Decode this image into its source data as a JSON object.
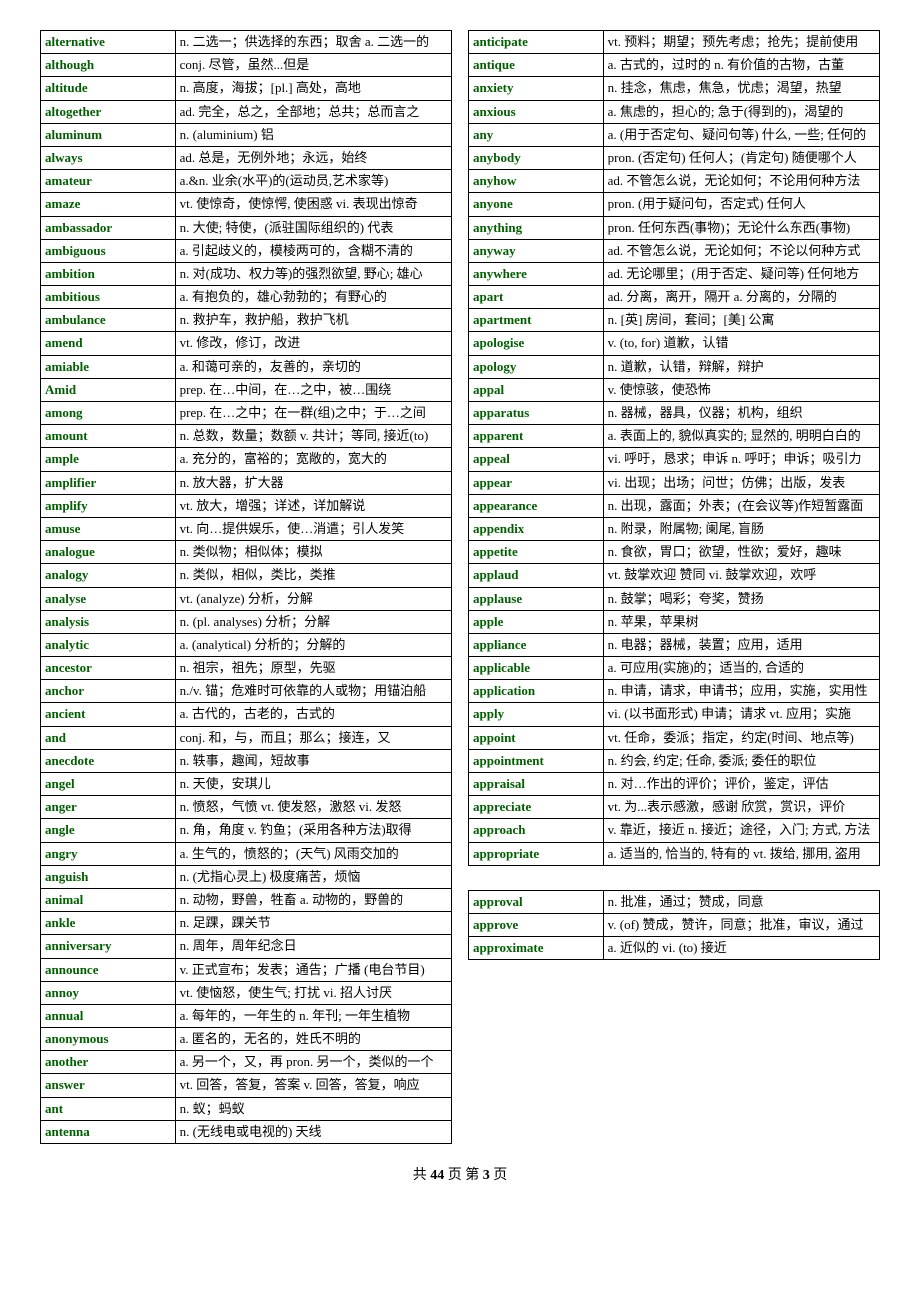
{
  "colors": {
    "word": "#006000",
    "def": "#000000",
    "border": "#000000",
    "background": "#ffffff"
  },
  "typography": {
    "word_font": "Times New Roman",
    "def_font": "SimSun",
    "font_size_pt": 10,
    "word_weight": "bold"
  },
  "layout": {
    "columns": 2,
    "word_col_width_pct": 32,
    "def_col_width_pct": 68
  },
  "left": [
    {
      "w": "alternative",
      "d": "n. 二选一；供选择的东西；取舍 a. 二选一的"
    },
    {
      "w": "although",
      "d": "conj. 尽管，虽然...但是"
    },
    {
      "w": "altitude",
      "d": "n. 高度，海拔；[pl.] 高处，高地"
    },
    {
      "w": "altogether",
      "d": "ad. 完全，总之，全部地；总共；总而言之"
    },
    {
      "w": "aluminum",
      "d": "n. (aluminium) 铝"
    },
    {
      "w": "always",
      "d": "ad. 总是，无例外地；永远，始终"
    },
    {
      "w": "amateur",
      "d": "a.&n. 业余(水平)的(运动员,艺术家等)"
    },
    {
      "w": "amaze",
      "d": "vt. 使惊奇，使惊愕, 使困惑  vi. 表现出惊奇"
    },
    {
      "w": "ambassador",
      "d": "n. 大使; 特使，(派驻国际组织的) 代表"
    },
    {
      "w": "ambiguous",
      "d": "a. 引起歧义的，模棱两可的，含糊不清的"
    },
    {
      "w": "ambition",
      "d": "n. 对(成功、权力等)的强烈欲望, 野心; 雄心"
    },
    {
      "w": "ambitious",
      "d": "a. 有抱负的，雄心勃勃的；有野心的"
    },
    {
      "w": "ambulance",
      "d": "n. 救护车，救护船，救护飞机"
    },
    {
      "w": "amend",
      "d": "vt. 修改，修订，改进"
    },
    {
      "w": "amiable",
      "d": "a. 和蔼可亲的，友善的，亲切的"
    },
    {
      "w": "Amid",
      "d": "prep. 在…中间，在…之中，被…围绕"
    },
    {
      "w": "among",
      "d": "prep. 在…之中；在一群(组)之中；于…之间"
    },
    {
      "w": "amount",
      "d": "n. 总数，数量；数额 v. 共计；等同, 接近(to)"
    },
    {
      "w": "ample",
      "d": "a. 充分的，富裕的；宽敞的，宽大的"
    },
    {
      "w": "amplifier",
      "d": "n. 放大器，扩大器"
    },
    {
      "w": "amplify",
      "d": "vt. 放大，增强；详述，详加解说"
    },
    {
      "w": "amuse",
      "d": "vt. 向…提供娱乐，使…消遣；引人发笑"
    },
    {
      "w": "analogue",
      "d": "n. 类似物；相似体；模拟"
    },
    {
      "w": "analogy",
      "d": "n. 类似，相似，类比，类推"
    },
    {
      "w": "analyse",
      "d": "vt. (analyze) 分析，分解"
    },
    {
      "w": "analysis",
      "d": "n. (pl. analyses) 分析；分解"
    },
    {
      "w": "analytic",
      "d": "a. (analytical) 分析的；分解的"
    },
    {
      "w": "ancestor",
      "d": "n. 祖宗，祖先；原型，先驱"
    },
    {
      "w": "anchor",
      "d": "n./v. 锚；危难时可依靠的人或物；用锚泊船"
    },
    {
      "w": "ancient",
      "d": "a. 古代的，古老的，古式的"
    },
    {
      "w": "and",
      "d": "conj. 和，与，而且；那么；接连，又"
    },
    {
      "w": "anecdote",
      "d": "n. 轶事，趣闻，短故事"
    },
    {
      "w": "angel",
      "d": "n. 天使，安琪儿"
    },
    {
      "w": "anger",
      "d": "n. 愤怒，气愤 vt. 使发怒，激怒 vi. 发怒"
    },
    {
      "w": "angle",
      "d": "n. 角，角度 v. 钓鱼；(采用各种方法)取得"
    },
    {
      "w": "angry",
      "d": "a. 生气的，愤怒的；(天气) 风雨交加的"
    },
    {
      "w": "anguish",
      "d": "n. (尤指心灵上) 极度痛苦，烦恼"
    },
    {
      "w": "animal",
      "d": "n. 动物，野兽，牲畜 a. 动物的，野兽的"
    },
    {
      "w": "ankle",
      "d": "n. 足踝，踝关节"
    },
    {
      "w": "anniversary",
      "d": "n. 周年，周年纪念日"
    },
    {
      "w": "announce",
      "d": "v. 正式宣布；发表；通告；广播 (电台节目)"
    },
    {
      "w": "annoy",
      "d": "vt. 使恼怒，使生气; 打扰 vi. 招人讨厌"
    },
    {
      "w": "annual",
      "d": "a. 每年的，一年生的 n. 年刊; 一年生植物"
    },
    {
      "w": "anonymous",
      "d": "a. 匿名的，无名的，姓氏不明的"
    },
    {
      "w": "another",
      "d": "a. 另一个，又，再 pron. 另一个，类似的一个"
    },
    {
      "w": "answer",
      "d": "vt. 回答，答复，答案 v. 回答，答复，响应"
    },
    {
      "w": "ant",
      "d": "n. 蚁；蚂蚁"
    },
    {
      "w": "antenna",
      "d": "n. (无线电或电视的) 天线"
    }
  ],
  "right": [
    {
      "w": "anticipate",
      "d": "vt. 预料；期望；预先考虑；抢先；提前使用"
    },
    {
      "w": "antique",
      "d": "a. 古式的，过时的  n. 有价值的古物，古董"
    },
    {
      "w": "anxiety",
      "d": "n. 挂念，焦虑，焦急，忧虑；渴望，热望"
    },
    {
      "w": "anxious",
      "d": "a. 焦虑的，担心的; 急于(得到的)，渴望的"
    },
    {
      "w": "any",
      "d": "a. (用于否定句、疑问句等) 什么, 一些; 任何的"
    },
    {
      "w": "anybody",
      "d": "pron. (否定句) 任何人；(肯定句) 随便哪个人"
    },
    {
      "w": "anyhow",
      "d": "ad. 不管怎么说，无论如何；不论用何种方法"
    },
    {
      "w": "anyone",
      "d": "pron. (用于疑问句，否定式) 任何人"
    },
    {
      "w": "anything",
      "d": "pron. 任何东西(事物)；无论什么东西(事物)"
    },
    {
      "w": "anyway",
      "d": "ad. 不管怎么说，无论如何；不论以何种方式"
    },
    {
      "w": "anywhere",
      "d": "ad. 无论哪里；(用于否定、疑问等) 任何地方"
    },
    {
      "w": "apart",
      "d": "ad. 分离，离开，隔开 a. 分离的，分隔的"
    },
    {
      "w": "apartment",
      "d": "n. [英] 房间，套间；[美] 公寓"
    },
    {
      "w": "apologise",
      "d": "v. (to, for) 道歉，认错"
    },
    {
      "w": "apology",
      "d": "n. 道歉，认错，辩解，辩护"
    },
    {
      "w": "appal",
      "d": "v. 使惊骇，使恐怖"
    },
    {
      "w": "apparatus",
      "d": "n. 器械，器具，仪器；机构，组织"
    },
    {
      "w": "apparent",
      "d": "a. 表面上的, 貌似真实的; 显然的, 明明白白的"
    },
    {
      "w": "appeal",
      "d": "vi. 呼吁，恳求；申诉 n. 呼吁；申诉；吸引力"
    },
    {
      "w": "appear",
      "d": "vi. 出现；出场；问世；仿佛；出版，发表"
    },
    {
      "w": "appearance",
      "d": "n. 出现，露面；外表；(在会议等)作短暂露面"
    },
    {
      "w": "appendix",
      "d": "n. 附录，附属物; 阑尾, 盲肠"
    },
    {
      "w": "appetite",
      "d": "n. 食欲，胃口；欲望，性欲；爱好，趣味"
    },
    {
      "w": "applaud",
      "d": "vt. 鼓掌欢迎 赞同 vi. 鼓掌欢迎，欢呼"
    },
    {
      "w": "applause",
      "d": "n. 鼓掌；喝彩；夸奖，赞扬"
    },
    {
      "w": "apple",
      "d": "n. 苹果，苹果树"
    },
    {
      "w": "appliance",
      "d": "n. 电器；器械，装置；应用，适用"
    },
    {
      "w": "applicable",
      "d": "a. 可应用(实施)的；适当的, 合适的"
    },
    {
      "w": "application",
      "d": "n. 申请，请求，申请书；应用，实施，实用性"
    },
    {
      "w": "apply",
      "d": "vi. (以书面形式) 申请；请求 vt. 应用；实施"
    },
    {
      "w": "appoint",
      "d": "vt. 任命，委派；指定，约定(时间、地点等)"
    },
    {
      "w": "appointment",
      "d": "n. 约会, 约定; 任命, 委派; 委任的职位"
    },
    {
      "w": "appraisal",
      "d": "n. 对…作出的评价；评价，鉴定，评估"
    },
    {
      "w": "appreciate",
      "d": "vt. 为...表示感激，感谢 欣赏，赏识，评价"
    },
    {
      "w": "approach",
      "d": "v. 靠近，接近 n. 接近；途径，入门; 方式, 方法"
    },
    {
      "w": "appropriate",
      "d": "a. 适当的, 恰当的, 特有的 vt. 拨给, 挪用, 盗用"
    }
  ],
  "extra": [
    {
      "w": "approval",
      "d": "n. 批准，通过；赞成，同意"
    },
    {
      "w": "approve",
      "d": "v. (of) 赞成，赞许，同意；批准，审议，通过"
    },
    {
      "w": "approximate",
      "d": "a. 近似的 vi. (to) 接近"
    }
  ],
  "footer": {
    "total_pages": "44",
    "current_page": "3",
    "prefix": "共",
    "mid1": "页 第",
    "suffix": "页"
  }
}
